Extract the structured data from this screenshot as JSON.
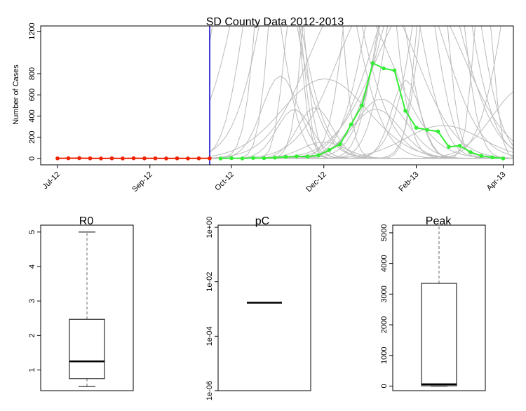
{
  "chart_data": [
    {
      "type": "line",
      "title": "SD County Data 2012-2013",
      "xlabel": "",
      "ylabel": "Number of Cases",
      "ylim": [
        -60,
        1250
      ],
      "y_ticks": [
        0,
        200,
        400,
        600,
        800,
        1200
      ],
      "x_ticks": [
        "Jul-12",
        "Sep-12",
        "Oct-12",
        "Dec-12",
        "Feb-13",
        "Apr-13"
      ],
      "x_tick_weeks": [
        0,
        8.5,
        16,
        24.5,
        33,
        41
      ],
      "cutoff_week": 14,
      "grid": false,
      "colors": {
        "fitted": "#ee2200",
        "predicted": "#33ee33",
        "ensemble": "#bbbbbb",
        "cutoff": "#0000cc"
      },
      "series": [
        {
          "role": "fitted",
          "x": [
            0,
            1,
            2,
            3,
            4,
            5,
            6,
            7,
            8,
            9,
            10,
            11,
            12,
            13,
            14
          ],
          "values": [
            1,
            2,
            3,
            1,
            0,
            1,
            0,
            2,
            1,
            1,
            0,
            1,
            0,
            1,
            1
          ]
        },
        {
          "role": "predicted",
          "x": [
            15,
            16,
            17,
            18,
            19,
            20,
            21,
            22,
            23,
            24,
            25,
            26,
            27,
            28,
            29,
            30,
            31,
            32,
            33,
            34,
            35,
            36,
            37,
            38,
            39,
            40,
            41
          ],
          "values": [
            0,
            3,
            0,
            5,
            3,
            8,
            15,
            20,
            18,
            30,
            80,
            135,
            320,
            500,
            900,
            850,
            830,
            450,
            290,
            270,
            255,
            110,
            120,
            60,
            25,
            10,
            0
          ]
        }
      ]
    },
    {
      "type": "box",
      "title": "R0",
      "y_ticks": [
        1,
        2,
        3,
        4,
        5
      ],
      "ylim": [
        0.4,
        5.2
      ],
      "whisker_low": 0.52,
      "q1": 0.75,
      "median": 1.25,
      "q3": 2.47,
      "whisker_high": 5.0
    },
    {
      "type": "box",
      "title": "pC",
      "scale": "log",
      "y_ticks": [
        "1e+00",
        "1e-02",
        "1e-04",
        "1e-06"
      ],
      "ylim": [
        1e-06,
        1.2
      ],
      "median": 0.0017
    },
    {
      "type": "box",
      "title": "Peak",
      "y_ticks": [
        0,
        1000,
        2000,
        3000,
        4000,
        5000
      ],
      "ylim": [
        -150,
        5250
      ],
      "whisker_low": 0,
      "q1": 10,
      "median": 60,
      "q3": 3350,
      "whisker_high": 5250
    }
  ]
}
